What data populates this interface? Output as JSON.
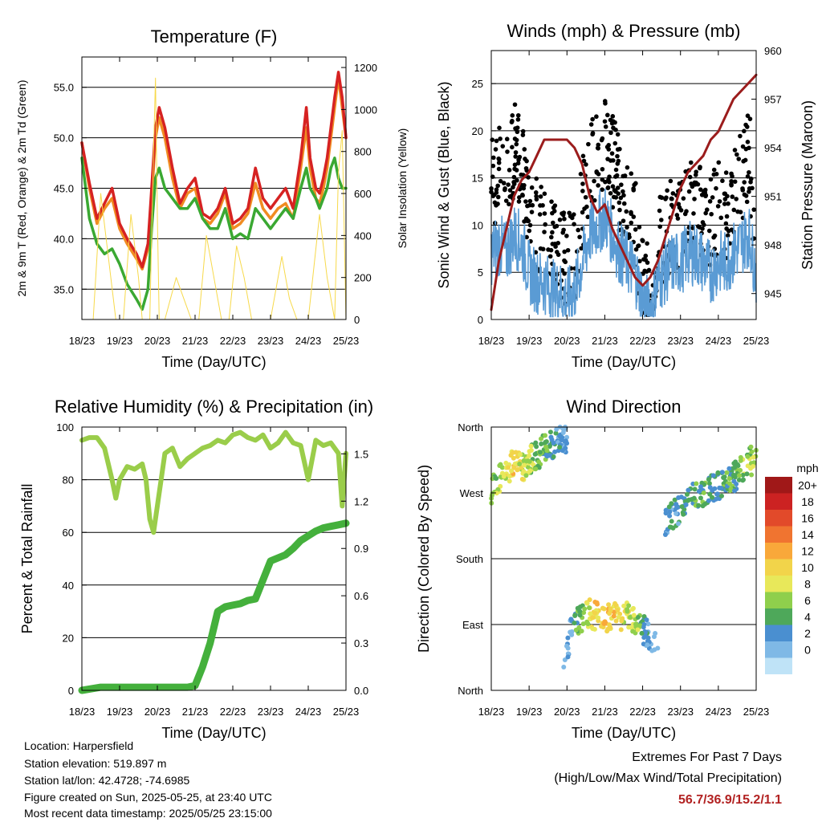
{
  "x_ticks": [
    "18/23",
    "19/23",
    "20/23",
    "21/23",
    "22/23",
    "23/23",
    "24/23",
    "25/23"
  ],
  "colors": {
    "temp_red": "#d62222",
    "temp_orange": "#f08c22",
    "dewpoint_green": "#3aa832",
    "solar_yellow": "#f7d94a",
    "gust_black": "#000000",
    "wind_blue": "#5a9bd4",
    "pressure_maroon": "#9b1c1c",
    "rh_green": "#9acd4a",
    "precip_green": "#44b03c",
    "extremes_text": "#b22222"
  },
  "footer": {
    "location": "Location: Harpersfield",
    "elevation": "Station elevation: 519.897 m",
    "latlon": "Station lat/lon: 42.4728; -74.6985",
    "created": "Figure created on Sun, 2025-05-25, at 23:40 UTC",
    "recent": "Most recent data timestamp: 2025/05/25 23:15:00"
  },
  "extremes": {
    "title": "Extremes For Past 7 Days",
    "subtitle": "(High/Low/Max Wind/Total Precipitation)",
    "values": "56.7/36.9/15.2/1.1"
  },
  "chart_data": [
    {
      "id": "temperature",
      "type": "line",
      "title": "Temperature (F)",
      "xlabel": "Time (Day/UTC)",
      "ylabel": "2m & 9m T (Red, Orange) & 2m Td (Green)",
      "y2label": "Solar Insolation (Yellow)",
      "x_range": [
        0,
        7
      ],
      "ylim": [
        32,
        58
      ],
      "yticks": [
        35,
        40,
        45,
        50,
        55
      ],
      "ytick_labels": [
        "35.0",
        "40.0",
        "45.0",
        "50.0",
        "55.0"
      ],
      "y2lim": [
        0,
        1250
      ],
      "y2ticks": [
        0,
        200,
        400,
        600,
        800,
        1000,
        1200
      ],
      "grid": true,
      "series": [
        {
          "key": "t9m",
          "color": "temp_orange",
          "x": [
            0,
            0.2,
            0.4,
            0.6,
            0.8,
            1.0,
            1.2,
            1.45,
            1.6,
            1.75,
            1.85,
            1.95,
            2.05,
            2.2,
            2.4,
            2.6,
            2.8,
            3.0,
            3.2,
            3.4,
            3.6,
            3.8,
            4.0,
            4.2,
            4.4,
            4.6,
            4.8,
            5.0,
            5.2,
            5.4,
            5.6,
            5.8,
            5.95,
            6.05,
            6.2,
            6.3,
            6.4,
            6.5,
            6.6,
            6.7,
            6.8,
            6.9,
            7.0
          ],
          "y": [
            49.5,
            45,
            41.5,
            43,
            44,
            41,
            39.5,
            38,
            37,
            39,
            44,
            50,
            52,
            50,
            46,
            43,
            44.5,
            45,
            42,
            41.5,
            42.5,
            44.5,
            41,
            41.5,
            42.5,
            45.5,
            43,
            42,
            43,
            43.5,
            42,
            47,
            51,
            47,
            44,
            43.5,
            45,
            47,
            50,
            53,
            56,
            53,
            50
          ]
        },
        {
          "key": "t2m",
          "color": "temp_red",
          "x": [
            0,
            0.2,
            0.4,
            0.6,
            0.8,
            1.0,
            1.2,
            1.45,
            1.6,
            1.75,
            1.85,
            1.95,
            2.05,
            2.2,
            2.4,
            2.6,
            2.8,
            3.0,
            3.2,
            3.4,
            3.6,
            3.8,
            4.0,
            4.2,
            4.4,
            4.6,
            4.8,
            5.0,
            5.2,
            5.4,
            5.6,
            5.8,
            5.95,
            6.05,
            6.2,
            6.3,
            6.4,
            6.5,
            6.6,
            6.7,
            6.8,
            6.9,
            7.0
          ],
          "y": [
            49.5,
            45.5,
            42,
            43.5,
            45,
            41.5,
            40,
            38.5,
            37.2,
            39.5,
            45,
            51,
            53,
            51,
            47,
            43.5,
            45,
            46,
            42.5,
            42,
            43,
            45,
            41.5,
            42,
            43,
            47,
            44,
            43,
            44,
            45,
            43,
            48,
            53,
            48,
            45,
            44.5,
            46,
            48,
            51,
            54,
            56.5,
            54,
            50
          ]
        },
        {
          "key": "td2m",
          "color": "dewpoint_green",
          "x": [
            0,
            0.2,
            0.4,
            0.6,
            0.8,
            1.0,
            1.2,
            1.45,
            1.6,
            1.75,
            1.85,
            1.95,
            2.05,
            2.2,
            2.4,
            2.6,
            2.8,
            3.0,
            3.2,
            3.4,
            3.6,
            3.8,
            4.0,
            4.2,
            4.4,
            4.6,
            4.8,
            5.0,
            5.2,
            5.4,
            5.6,
            5.8,
            5.95,
            6.05,
            6.2,
            6.3,
            6.4,
            6.5,
            6.6,
            6.7,
            6.8,
            6.9,
            7.0
          ],
          "y": [
            48,
            42,
            39.5,
            38.5,
            39,
            37.5,
            35.5,
            34,
            33,
            35,
            41,
            46,
            47,
            45,
            44,
            43,
            43,
            44,
            42,
            41,
            41,
            43,
            40,
            40.5,
            40,
            43,
            42,
            41,
            42,
            43,
            42,
            45,
            47,
            45,
            44,
            43,
            44,
            45,
            47,
            48,
            46,
            45,
            45
          ]
        },
        {
          "key": "solar",
          "color": "solar_yellow",
          "axis": "y2",
          "x": [
            0,
            0.3,
            0.5,
            0.7,
            0.9,
            1.1,
            1.3,
            1.5,
            1.6,
            1.7,
            1.8,
            1.9,
            1.95,
            2.0,
            2.05,
            2.2,
            2.5,
            2.7,
            2.9,
            3.1,
            3.3,
            3.5,
            3.7,
            3.9,
            4.1,
            4.3,
            4.5,
            4.7,
            4.9,
            5.0,
            5.3,
            5.5,
            5.7,
            5.9,
            6.0,
            6.3,
            6.5,
            6.7,
            6.8,
            6.9,
            7.0
          ],
          "y": [
            0,
            0,
            600,
            300,
            0,
            0,
            500,
            200,
            0,
            0,
            0,
            800,
            1150,
            500,
            0,
            0,
            200,
            100,
            0,
            0,
            400,
            200,
            0,
            0,
            350,
            200,
            0,
            0,
            0,
            0,
            300,
            100,
            0,
            0,
            0,
            500,
            200,
            0,
            700,
            900,
            0
          ]
        }
      ]
    },
    {
      "id": "winds",
      "type": "line",
      "title": "Winds (mph) & Pressure (mb)",
      "xlabel": "Time (Day/UTC)",
      "ylabel": "Sonic Wind & Gust (Blue, Black)",
      "y2label": "Station Pressure (Maroon)",
      "x_range": [
        0,
        7
      ],
      "ylim": [
        0,
        28.5
      ],
      "yticks": [
        0,
        5,
        10,
        15,
        20,
        25
      ],
      "y2lim": [
        943.4,
        960
      ],
      "y2ticks": [
        945,
        948,
        951,
        954,
        957,
        960
      ],
      "grid": true,
      "series": [
        {
          "key": "gust",
          "color": "gust_black",
          "x": [
            0,
            0.2,
            0.4,
            0.6,
            0.8,
            1.0,
            1.2,
            1.4,
            1.6,
            1.8,
            2.0,
            2.2,
            2.4,
            2.6,
            2.8,
            3.0,
            3.2,
            3.4,
            3.6,
            3.8,
            4.0,
            4.2,
            4.4,
            4.6,
            4.8,
            5.0,
            5.2,
            5.4,
            5.6,
            5.8,
            6.0,
            6.2,
            6.4,
            6.6,
            6.8,
            7.0
          ],
          "y": [
            14,
            16,
            15,
            18,
            17,
            12,
            10,
            9,
            8,
            7,
            6,
            7,
            12,
            16,
            18,
            19,
            17,
            14,
            12,
            10,
            4,
            3,
            8,
            9,
            11,
            10,
            12,
            13,
            11,
            10,
            12,
            11,
            13,
            15,
            18,
            10
          ]
        },
        {
          "key": "wind",
          "color": "wind_blue",
          "x": [
            0,
            0.2,
            0.4,
            0.6,
            0.8,
            1.0,
            1.2,
            1.4,
            1.6,
            1.8,
            2.0,
            2.2,
            2.4,
            2.6,
            2.8,
            3.0,
            3.2,
            3.4,
            3.6,
            3.8,
            4.0,
            4.2,
            4.4,
            4.6,
            4.8,
            5.0,
            5.2,
            5.4,
            5.6,
            5.8,
            6.0,
            6.2,
            6.4,
            6.6,
            6.8,
            7.0
          ],
          "y": [
            7,
            8,
            7,
            9,
            8,
            5,
            4,
            4,
            3,
            3,
            2,
            3,
            6,
            9,
            10,
            11,
            9,
            7,
            6,
            5,
            2,
            1,
            4,
            5,
            6,
            6,
            7,
            7,
            6,
            5,
            6,
            6,
            7,
            8,
            9,
            5
          ]
        },
        {
          "key": "pressure",
          "color": "pressure_maroon",
          "axis": "y2",
          "x": [
            0,
            0.2,
            0.4,
            0.6,
            0.8,
            1.0,
            1.2,
            1.4,
            1.6,
            1.8,
            2.0,
            2.2,
            2.4,
            2.6,
            2.8,
            3.0,
            3.2,
            3.4,
            3.6,
            3.8,
            4.0,
            4.2,
            4.4,
            4.6,
            4.8,
            5.0,
            5.2,
            5.4,
            5.6,
            5.8,
            6.0,
            6.2,
            6.4,
            6.6,
            6.8,
            7.0
          ],
          "y": [
            944,
            947,
            949,
            951,
            952,
            952.5,
            953.5,
            954.5,
            954.5,
            954.5,
            954.5,
            954,
            953,
            951,
            950,
            950.5,
            949,
            948,
            947,
            946,
            945.5,
            946,
            947,
            948.5,
            950,
            951.5,
            952.5,
            953,
            953.5,
            954.5,
            955,
            956,
            957,
            957.5,
            958,
            958.5
          ]
        }
      ]
    },
    {
      "id": "humidity",
      "type": "line",
      "title": "Relative Humidity (%) & Precipitation (in)",
      "xlabel": "Time (Day/UTC)",
      "ylabel": "Percent & Total Rainfall",
      "x_range": [
        0,
        7
      ],
      "ylim": [
        0,
        100
      ],
      "yticks": [
        0,
        20,
        40,
        60,
        80,
        100
      ],
      "y2lim": [
        0,
        1.67
      ],
      "y2ticks": [
        0,
        0.3,
        0.6,
        0.9,
        1.2,
        1.5
      ],
      "y2tick_labels": [
        "0.0",
        "0.3",
        "0.6",
        "0.9",
        "1.2",
        "1.5"
      ],
      "grid": true,
      "series": [
        {
          "key": "rh",
          "color": "rh_green",
          "x": [
            0,
            0.2,
            0.4,
            0.6,
            0.8,
            0.9,
            1.0,
            1.2,
            1.4,
            1.6,
            1.7,
            1.8,
            1.9,
            2.0,
            2.2,
            2.4,
            2.6,
            2.8,
            3.0,
            3.2,
            3.4,
            3.6,
            3.8,
            4.0,
            4.2,
            4.4,
            4.6,
            4.8,
            5.0,
            5.2,
            5.4,
            5.6,
            5.8,
            6.0,
            6.2,
            6.4,
            6.6,
            6.8,
            6.9,
            7.0
          ],
          "y": [
            95,
            96,
            96,
            92,
            80,
            73,
            80,
            85,
            84,
            86,
            80,
            65,
            60,
            70,
            90,
            92,
            85,
            88,
            90,
            92,
            93,
            95,
            94,
            97,
            98,
            96,
            95,
            97,
            92,
            94,
            98,
            94,
            93,
            80,
            95,
            93,
            94,
            90,
            70,
            90
          ]
        },
        {
          "key": "precip",
          "color": "precip_green",
          "axis": "y2",
          "x": [
            0,
            0.5,
            1.0,
            1.5,
            2.0,
            2.5,
            2.8,
            3.0,
            3.2,
            3.4,
            3.6,
            3.8,
            4.0,
            4.2,
            4.4,
            4.6,
            4.8,
            5.0,
            5.2,
            5.4,
            5.6,
            5.8,
            6.0,
            6.2,
            6.4,
            6.6,
            6.8,
            7.0
          ],
          "y": [
            0,
            0.02,
            0.02,
            0.02,
            0.02,
            0.02,
            0.02,
            0.03,
            0.15,
            0.3,
            0.5,
            0.53,
            0.54,
            0.55,
            0.57,
            0.58,
            0.7,
            0.82,
            0.84,
            0.86,
            0.9,
            0.95,
            0.98,
            1.01,
            1.03,
            1.04,
            1.05,
            1.06
          ]
        }
      ]
    },
    {
      "id": "direction",
      "type": "scatter",
      "title": "Wind Direction",
      "xlabel": "Time (Day/UTC)",
      "ylabel": "Direction (Colored By Speed)",
      "x_range": [
        0,
        7
      ],
      "ylim": [
        0,
        360
      ],
      "yticks": [
        0,
        90,
        180,
        270,
        360
      ],
      "ytick_labels": [
        "North",
        "East",
        "South",
        "West",
        "North"
      ],
      "grid": true,
      "colorbar_title": "mph",
      "colorbar_labels": [
        "20+",
        "18",
        "16",
        "14",
        "12",
        "10",
        "8",
        "6",
        "4",
        "2",
        "0"
      ],
      "colorbar_colors": [
        "#a01818",
        "#cc2222",
        "#e24a2a",
        "#f07430",
        "#f9a83a",
        "#f2d44a",
        "#e8e85a",
        "#8fcf4c",
        "#4ea85a",
        "#4a8fd0",
        "#7fb9e6",
        "#bfe3f7"
      ],
      "series": [
        {
          "key": "dir_a",
          "x": [
            0.0,
            0.2,
            0.4,
            0.6,
            0.8,
            1.0,
            1.2,
            1.4,
            1.6,
            1.8,
            2.0
          ],
          "y": [
            275,
            290,
            300,
            310,
            305,
            315,
            320,
            330,
            335,
            340,
            345
          ],
          "speed": [
            6,
            8,
            10,
            12,
            10,
            9,
            7,
            6,
            5,
            4,
            3
          ]
        },
        {
          "key": "dir_b",
          "x": [
            1.9,
            2.0,
            2.1,
            2.2,
            2.4,
            2.6,
            2.8,
            3.0,
            3.2,
            3.4,
            3.6,
            3.8,
            4.0,
            4.2,
            4.4
          ],
          "y": [
            30,
            60,
            80,
            95,
            100,
            105,
            100,
            100,
            100,
            100,
            100,
            95,
            85,
            70,
            60
          ],
          "speed": [
            2,
            3,
            4,
            5,
            8,
            10,
            12,
            13,
            12,
            11,
            10,
            9,
            5,
            3,
            2
          ]
        },
        {
          "key": "dir_c",
          "x": [
            4.6,
            4.8,
            5.0,
            5.2,
            5.4,
            5.6,
            5.8,
            6.0,
            6.2,
            6.4,
            6.6,
            6.8,
            7.0
          ],
          "y": [
            230,
            240,
            250,
            260,
            265,
            270,
            275,
            280,
            285,
            290,
            300,
            310,
            320
          ],
          "speed": [
            3,
            4,
            5,
            5,
            6,
            6,
            5,
            5,
            6,
            6,
            7,
            8,
            9
          ]
        }
      ]
    }
  ]
}
